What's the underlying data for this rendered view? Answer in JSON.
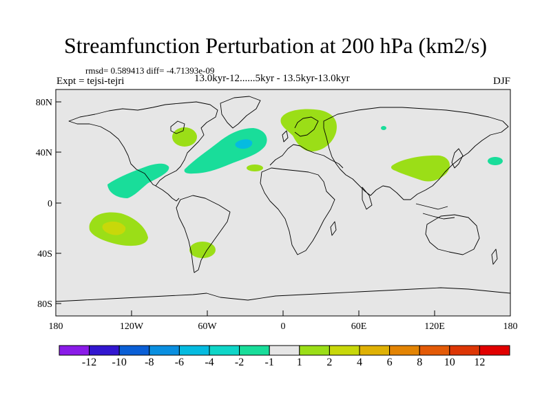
{
  "title": "Streamfunction Perturbation at 200 hPa (km2/s)",
  "stats_line": "rmsd= 0.589413 diff= -4.71393e-09",
  "experiment_label": "Expt = tejsi-tejri",
  "period_label": "13.0kyr-12......5kyr - 13.5kyr-13.0kyr",
  "season_label": "DJF",
  "axes": {
    "lat_ticks": [
      "80N",
      "40N",
      "0",
      "40S",
      "80S"
    ],
    "lon_ticks": [
      "180",
      "120W",
      "60W",
      "0",
      "60E",
      "120E",
      "180"
    ]
  },
  "colorbar": {
    "labels": [
      "-12",
      "-10",
      "-8",
      "-6",
      "-4",
      "-2",
      "-1",
      "1",
      "2",
      "4",
      "6",
      "8",
      "10",
      "12"
    ],
    "colors": [
      "#8a1be8",
      "#3216d0",
      "#0a5fd6",
      "#0a8fe0",
      "#05bbe0",
      "#0fd6c8",
      "#19dd9a",
      "#e6e6e6",
      "#9bde17",
      "#c8d80a",
      "#dfb104",
      "#e38403",
      "#e35a07",
      "#dd3605",
      "#e10000"
    ]
  },
  "chart_data": {
    "type": "contour-map",
    "variable": "Streamfunction Perturbation at 200 hPa",
    "units": "km2/s",
    "season": "DJF",
    "features": [
      {
        "region": "North Pacific / Mexico (west-southwest)",
        "sign": "negative",
        "level": "-2 to -1"
      },
      {
        "region": "North Atlantic (SW-NE band)",
        "sign": "negative",
        "level": "-4 to -1"
      },
      {
        "region": "Eastern Canada / Great Lakes",
        "sign": "positive",
        "level": "1 to 2"
      },
      {
        "region": "Scandinavia / Northern Europe",
        "sign": "positive",
        "level": "1 to 2"
      },
      {
        "region": "China / Korea / Japan",
        "sign": "positive",
        "level": "1 to 2"
      },
      {
        "region": "South Pacific",
        "sign": "positive",
        "level": "1 to 4"
      },
      {
        "region": "Southern South America",
        "sign": "positive",
        "level": "1 to 2"
      },
      {
        "region": "Mid Atlantic near Azores",
        "sign": "positive",
        "level": "1 to 2"
      },
      {
        "region": "Northwest Pacific",
        "sign": "negative",
        "level": "-2 to -1"
      }
    ]
  }
}
